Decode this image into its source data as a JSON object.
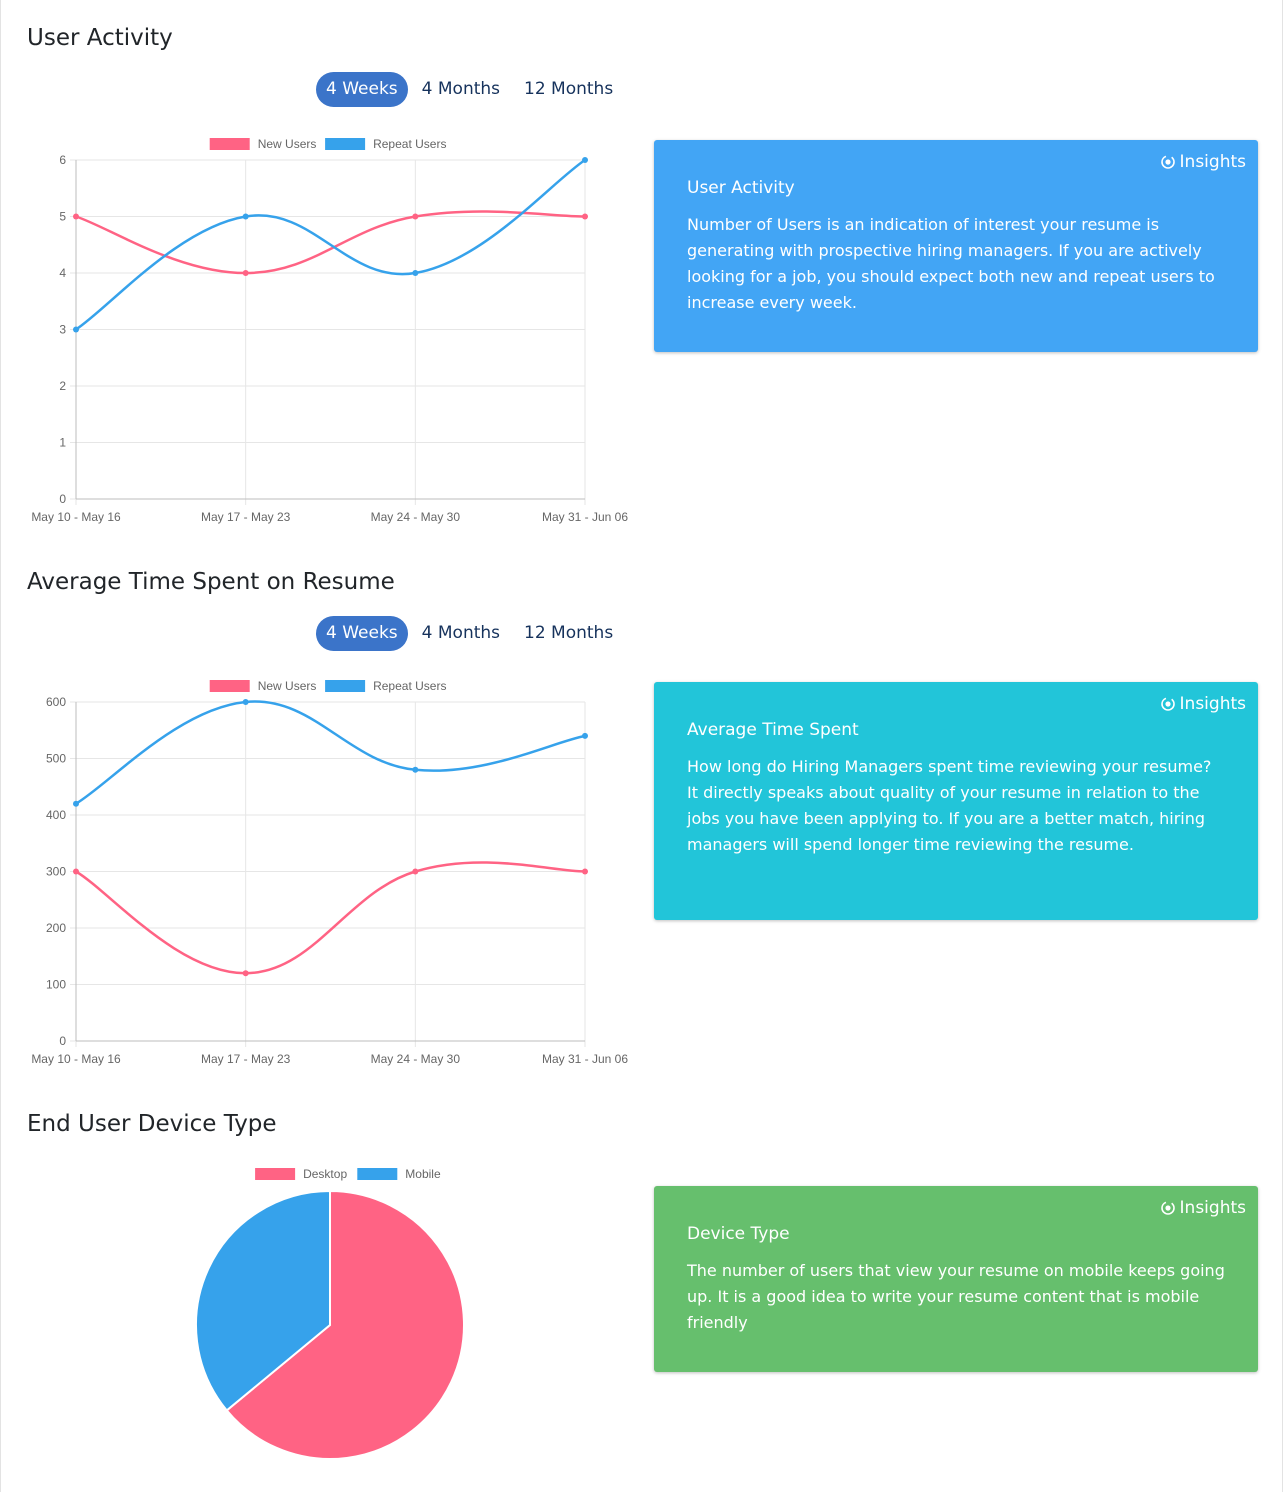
{
  "sections": [
    {
      "title": "User Activity",
      "tabs": [
        "4 Weeks",
        "4 Months",
        "12 Months"
      ],
      "active_tab": 0,
      "insight": {
        "badge": "Insights",
        "heading": "User Activity",
        "text": "Number of Users is an indication of interest your resume is generating with prospective hiring managers. If you are actively looking for a job, you should expect both new and repeat users to increase every week.",
        "color": "#42a5f5"
      }
    },
    {
      "title": "Average Time Spent on Resume",
      "tabs": [
        "4 Weeks",
        "4 Months",
        "12 Months"
      ],
      "active_tab": 0,
      "insight": {
        "badge": "Insights",
        "heading": "Average Time Spent",
        "text": "How long do Hiring Managers spent time reviewing your resume? It directly speaks about quality of your resume in relation to the jobs you have been applying to. If you are a better match, hiring managers will spend longer time reviewing the resume.",
        "color": "#22c5d9"
      }
    },
    {
      "title": "End User Device Type",
      "insight": {
        "badge": "Insights",
        "heading": "Device Type",
        "text": "The number of users that view your resume on mobile keeps going up. It is a good idea to write your resume content that is mobile friendly",
        "color": "#66bf6d"
      }
    }
  ],
  "chart_data": [
    {
      "type": "line",
      "categories": [
        "May 10 - May 16",
        "May 17 - May 23",
        "May 24 - May 30",
        "May 31 - Jun 06"
      ],
      "series": [
        {
          "name": "New Users",
          "values": [
            5,
            4,
            5,
            5
          ],
          "color": "#ff6384"
        },
        {
          "name": "Repeat Users",
          "values": [
            3,
            5,
            4,
            6
          ],
          "color": "#36a2eb"
        }
      ],
      "ylim": [
        0,
        6
      ],
      "yticks": [
        0,
        1,
        2,
        3,
        4,
        5,
        6
      ],
      "grid": true,
      "legend": "top"
    },
    {
      "type": "line",
      "categories": [
        "May 10 - May 16",
        "May 17 - May 23",
        "May 24 - May 30",
        "May 31 - Jun 06"
      ],
      "series": [
        {
          "name": "New Users",
          "values": [
            300,
            120,
            300,
            300
          ],
          "color": "#ff6384"
        },
        {
          "name": "Repeat Users",
          "values": [
            420,
            600,
            480,
            540
          ],
          "color": "#36a2eb"
        }
      ],
      "ylim": [
        0,
        600
      ],
      "yticks": [
        0,
        100,
        200,
        300,
        400,
        500,
        600
      ],
      "grid": true,
      "legend": "top"
    },
    {
      "type": "pie",
      "labels": [
        "Desktop",
        "Mobile"
      ],
      "values": [
        64,
        36
      ],
      "colors": [
        "#ff6384",
        "#36a2eb"
      ],
      "legend": "top"
    }
  ]
}
